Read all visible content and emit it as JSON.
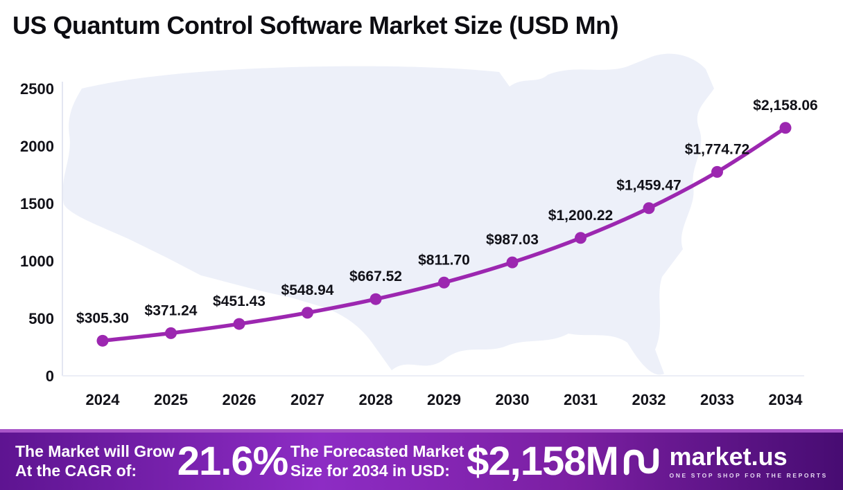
{
  "title": "US Quantum Control Software Market Size (USD Mn)",
  "chart_data": {
    "type": "line",
    "title": "US Quantum Control Software Market Size (USD Mn)",
    "x": [
      2024,
      2025,
      2026,
      2027,
      2028,
      2029,
      2030,
      2031,
      2032,
      2033,
      2034
    ],
    "series": [
      {
        "name": "US Quantum Control Software Market Size (USD Mn)",
        "values": [
          305.3,
          371.24,
          451.43,
          548.94,
          667.52,
          811.7,
          987.03,
          1200.22,
          1459.47,
          1774.72,
          2158.06
        ]
      }
    ],
    "data_labels": [
      "$305.30",
      "$371.24",
      "$451.43",
      "$548.94",
      "$667.52",
      "$811.70",
      "$987.03",
      "$1,200.22",
      "$1,459.47",
      "$1,774.72",
      "$2,158.06"
    ],
    "yticks": [
      0,
      500,
      1000,
      1500,
      2000,
      2500
    ],
    "ylim": [
      0,
      2500
    ],
    "xlabel": "",
    "ylabel": "",
    "grid": false,
    "legend": false,
    "line_color": "#9c27b0",
    "point_color": "#9c27b0",
    "label_color": "#111118",
    "axis_text_color": "#111118",
    "map_background_color": "#edf0f9"
  },
  "banner": {
    "cagr_label_line1": "The Market will Grow",
    "cagr_label_line2": "At the CAGR of:",
    "cagr_value": "21.6%",
    "forecast_label_line1": "The Forecasted Market",
    "forecast_label_line2": "Size for 2034 in USD:",
    "forecast_value": "$2,158M",
    "logo_text": "market.us",
    "logo_tagline": "ONE STOP SHOP FOR THE REPORTS"
  }
}
